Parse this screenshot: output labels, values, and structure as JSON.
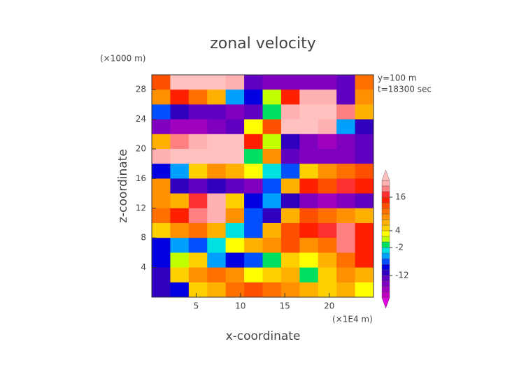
{
  "chart_data": {
    "type": "contour",
    "title": "zonal velocity",
    "y_unit": "(×1000 m)",
    "x_unit": "(×1E4 m)",
    "annotations": [
      "y=100 m",
      "t=18300 sec"
    ],
    "xlabel": "x-coordinate",
    "ylabel": "z-coordinate",
    "xlim": [
      0,
      25
    ],
    "ylim": [
      0,
      30
    ],
    "xticks": [
      5,
      10,
      15,
      20
    ],
    "yticks": [
      4,
      8,
      12,
      16,
      20,
      24,
      28
    ],
    "levels": [
      -20,
      -18,
      -16,
      -14,
      -12,
      -10,
      -8,
      -6,
      -4,
      -2,
      0,
      2,
      4,
      6,
      8,
      10,
      12,
      14,
      16,
      18,
      20,
      22
    ],
    "colors": [
      "#e000e0",
      "#c000c0",
      "#a000c0",
      "#8000c0",
      "#6000c0",
      "#3000c0",
      "#0000e0",
      "#0050ff",
      "#00a0ff",
      "#00e0e0",
      "#00e060",
      "#c0ff00",
      "#ffff00",
      "#ffd000",
      "#ffb000",
      "#ff9000",
      "#ff7000",
      "#ff5000",
      "#ff2000",
      "#ff3030",
      "#ff8080",
      "#ffb0b0",
      "#ffc0c0"
    ],
    "colorbar_ticks": [
      16,
      4,
      -2,
      -12
    ],
    "z": [
      [
        12,
        22,
        22,
        22,
        20,
        -14,
        -16,
        -16,
        -16,
        -16,
        -14,
        10
      ],
      [
        8,
        14,
        10,
        6,
        -6,
        -10,
        0,
        14,
        20,
        20,
        -14,
        8
      ],
      [
        -8,
        -12,
        -14,
        -14,
        -16,
        -14,
        -2,
        20,
        22,
        22,
        18,
        6
      ],
      [
        -16,
        -18,
        -18,
        -16,
        -14,
        2,
        12,
        22,
        22,
        20,
        -6,
        -12
      ],
      [
        6,
        18,
        20,
        22,
        22,
        14,
        0,
        -12,
        -16,
        -18,
        -16,
        -14
      ],
      [
        20,
        22,
        22,
        22,
        22,
        -2,
        8,
        -14,
        -16,
        -16,
        -16,
        -14
      ],
      [
        -10,
        -6,
        4,
        8,
        6,
        2,
        -4,
        -8,
        4,
        8,
        10,
        12
      ],
      [
        8,
        -12,
        -14,
        -12,
        -14,
        -16,
        -8,
        6,
        14,
        12,
        16,
        14
      ],
      [
        8,
        6,
        16,
        20,
        4,
        -10,
        -6,
        -12,
        -16,
        -18,
        -16,
        -14
      ],
      [
        10,
        14,
        18,
        20,
        8,
        -8,
        -12,
        6,
        12,
        10,
        8,
        6
      ],
      [
        4,
        8,
        10,
        6,
        -4,
        -8,
        6,
        12,
        14,
        16,
        18,
        14
      ],
      [
        -10,
        -6,
        -8,
        -4,
        2,
        6,
        8,
        12,
        8,
        10,
        18,
        14
      ],
      [
        -10,
        0,
        4,
        -6,
        -10,
        -8,
        -2,
        4,
        2,
        6,
        10,
        14
      ],
      [
        -12,
        4,
        8,
        10,
        8,
        2,
        4,
        6,
        -2,
        4,
        8,
        6
      ],
      [
        -12,
        -10,
        4,
        6,
        10,
        12,
        10,
        8,
        6,
        4,
        6,
        2
      ]
    ]
  }
}
